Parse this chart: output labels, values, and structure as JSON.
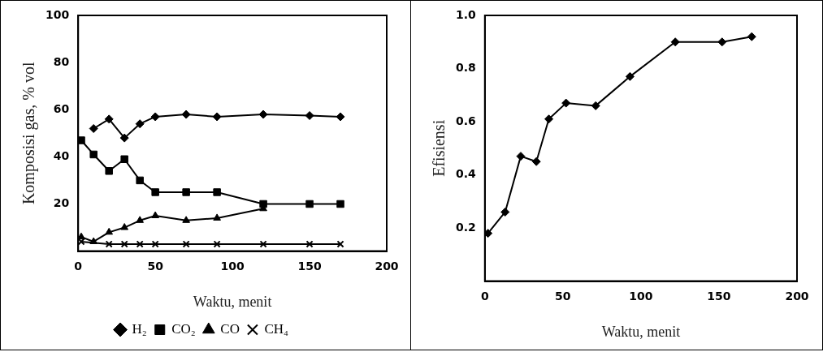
{
  "chart_data": [
    {
      "type": "line",
      "xlabel": "Waktu, menit",
      "ylabel": "Komposisi gas, % vol",
      "legend": "bottom",
      "grid": false,
      "line_style": "solid",
      "xlim": [
        0,
        200
      ],
      "xticks": [
        0,
        50,
        100,
        150,
        200
      ],
      "ylim": [
        0,
        100
      ],
      "yticks": [
        {
          "value": 0,
          "label": null
        },
        20,
        40,
        60,
        80,
        100
      ],
      "series": [
        {
          "name": "H₂",
          "color": "#000000",
          "marker": "diamond",
          "x": [
            10,
            20,
            30,
            40,
            50,
            70,
            90,
            120,
            150,
            170
          ],
          "values": [
            52,
            56,
            48,
            54,
            57,
            58,
            57,
            58,
            57.5,
            57
          ]
        },
        {
          "name": "CO₂",
          "color": "#000000",
          "marker": "square",
          "x": [
            2,
            10,
            20,
            30,
            40,
            50,
            70,
            90,
            120,
            150,
            170
          ],
          "values": [
            47,
            41,
            34,
            39,
            30,
            25,
            25,
            25,
            20,
            20,
            20
          ]
        },
        {
          "name": "CO",
          "color": "#000000",
          "marker": "triangle",
          "x": [
            2,
            10,
            20,
            30,
            40,
            50,
            70,
            90,
            120
          ],
          "values": [
            6,
            4,
            8,
            10,
            13,
            15,
            13,
            14,
            18
          ]
        },
        {
          "name": "CH₄",
          "color": "#000000",
          "marker": "cross",
          "x": [
            2,
            20,
            30,
            40,
            50,
            70,
            90,
            120,
            150,
            170
          ],
          "values": [
            4,
            3,
            3,
            3,
            3,
            3,
            3,
            3,
            3,
            3
          ]
        }
      ]
    },
    {
      "type": "line",
      "xlabel": "Waktu, menit",
      "ylabel": "Efisiensi",
      "grid": false,
      "line_style": "solid",
      "xlim": [
        0,
        200
      ],
      "xticks": [
        0,
        50,
        100,
        150,
        200
      ],
      "ylim": [
        0,
        1
      ],
      "yticks": [
        {
          "value": 0,
          "label": null
        },
        0.2,
        0.4,
        0.6,
        {
          "value": 0.8,
          "label": "0.8"
        },
        {
          "value": 1,
          "label": "1.0"
        }
      ],
      "series": [
        {
          "color": "#000000",
          "marker": "diamond",
          "x": [
            2,
            13,
            23,
            33,
            41,
            52,
            71,
            93,
            122,
            152,
            171
          ],
          "values": [
            0.18,
            0.26,
            0.47,
            0.45,
            0.61,
            0.67,
            0.66,
            0.77,
            0.9,
            0.9,
            0.92
          ]
        }
      ]
    }
  ]
}
